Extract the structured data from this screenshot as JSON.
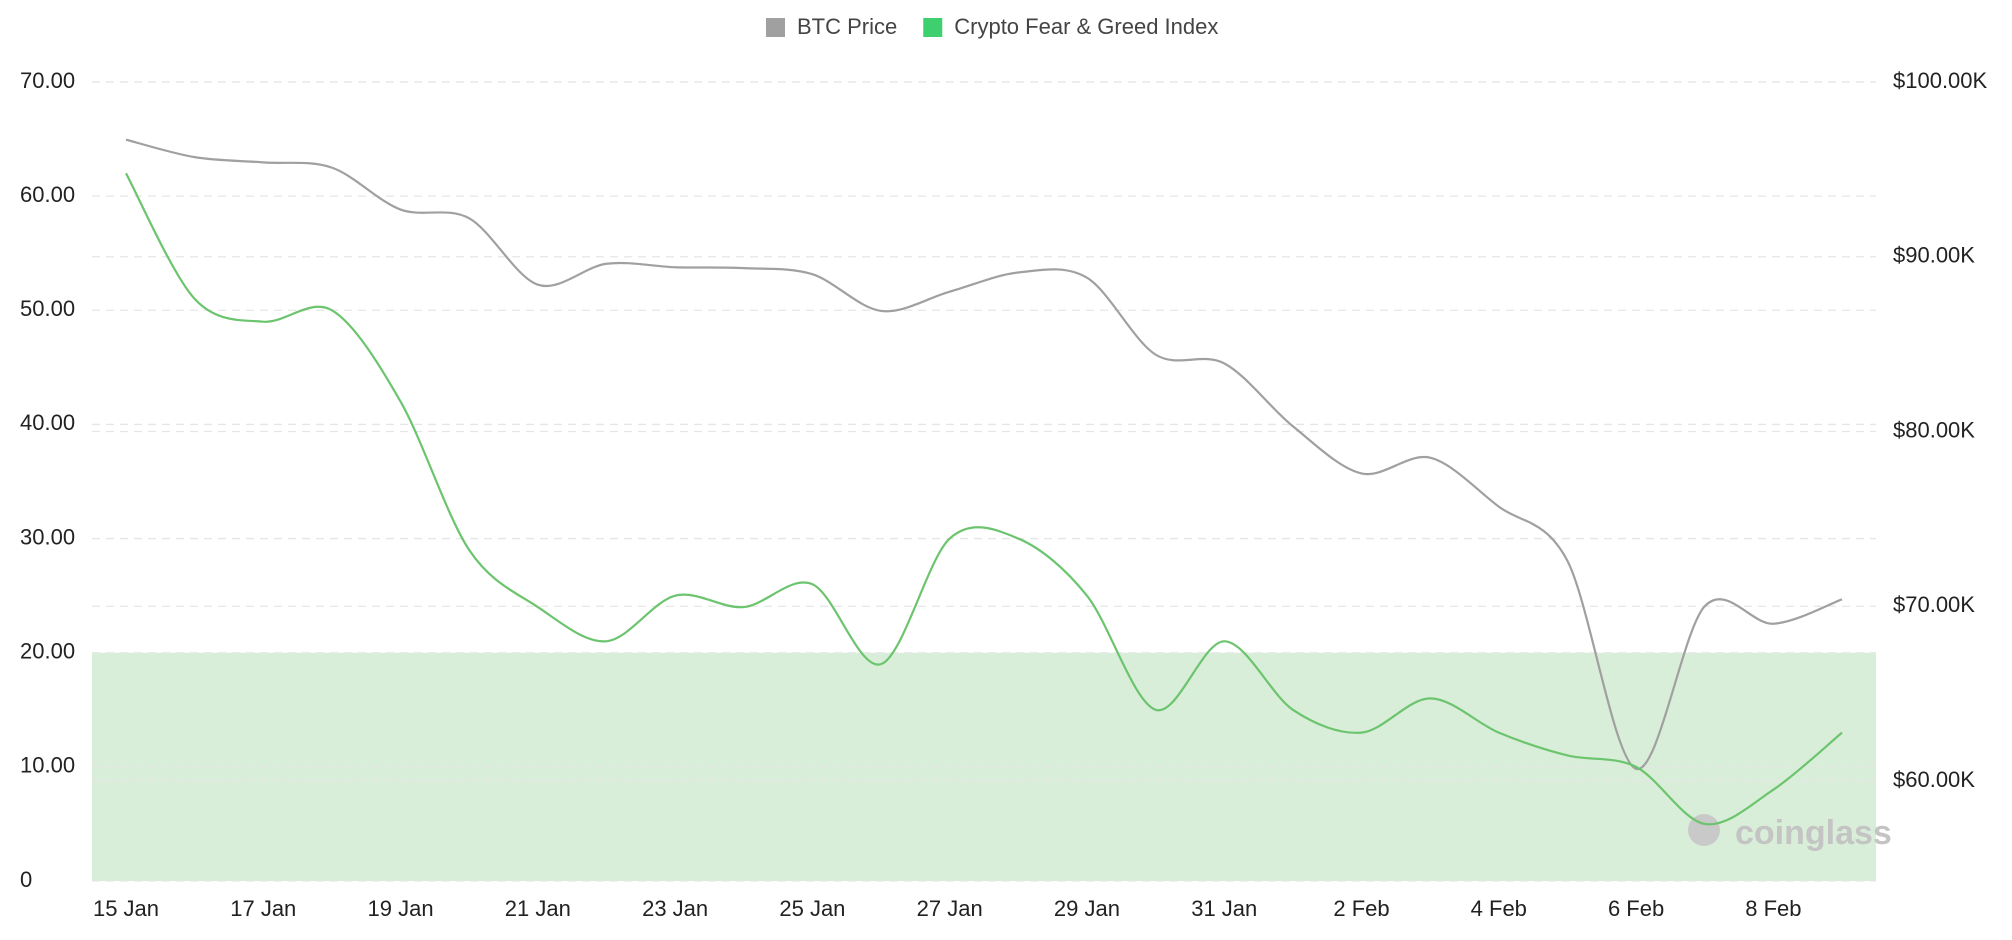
{
  "chart_data": {
    "type": "line",
    "categories": [
      "15 Jan",
      null,
      "17 Jan",
      null,
      "19 Jan",
      null,
      "21 Jan",
      null,
      "23 Jan",
      null,
      "25 Jan",
      null,
      "27 Jan",
      null,
      "29 Jan",
      null,
      "31 Jan",
      null,
      "2 Feb",
      null,
      "4 Feb",
      null,
      "6 Feb",
      null,
      "8 Feb",
      null
    ],
    "series": [
      {
        "name": "BTC Price",
        "color": "#a0a0a0",
        "axis": "y2",
        "values": [
          96700,
          95700,
          95400,
          95100,
          92700,
          92200,
          88400,
          89600,
          89400,
          89350,
          89000,
          86900,
          88000,
          89100,
          88800,
          84400,
          83900,
          80300,
          77600,
          78500,
          75700,
          72600,
          60700,
          70000,
          69000,
          70400
        ]
      },
      {
        "name": "Crypto Fear & Greed Index",
        "color": "#6cc46e",
        "values": [
          62,
          51,
          49,
          50,
          42,
          29,
          24,
          21,
          25,
          24,
          26,
          19,
          30,
          30,
          25,
          15,
          21,
          15,
          13,
          16,
          13,
          11,
          10,
          5,
          8,
          13
        ]
      }
    ],
    "legend_swatch_colors": [
      "#a0a0a0",
      "#3ecf6e"
    ],
    "shaded_range": [
      0,
      20
    ],
    "shaded_color": "#d8eed8",
    "ylim": [
      0,
      70
    ],
    "yticks": [
      0,
      {
        "value": 10,
        "label": "10.00"
      },
      {
        "value": 20,
        "label": "20.00"
      },
      {
        "value": 30,
        "label": "30.00"
      },
      {
        "value": 40,
        "label": "40.00"
      },
      {
        "value": 50,
        "label": "50.00"
      },
      {
        "value": 60,
        "label": "60.00"
      },
      {
        "value": 70,
        "label": "70.00"
      }
    ],
    "y2lim": [
      54280,
      100000
    ],
    "y2ticks": [
      {
        "value": 60000,
        "label": "$60.00K"
      },
      {
        "value": 70000,
        "label": "$70.00K"
      },
      {
        "value": 80000,
        "label": "$80.00K"
      },
      {
        "value": 90000,
        "label": "$90.00K"
      },
      {
        "value": 100000,
        "label": "$100.00K"
      }
    ],
    "grid": true,
    "watermark": "coinglass"
  }
}
